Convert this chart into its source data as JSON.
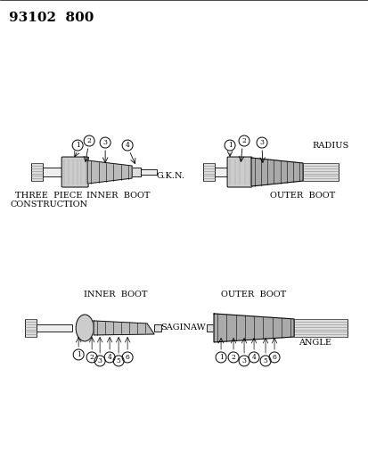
{
  "title_code": "93102  800",
  "background_color": "#ffffff",
  "line_color": "#000000",
  "labels": {
    "three_piece": "THREE  PIECE\nCONSTRUCTION",
    "inner_boot_gkn": "INNER  BOOT",
    "gkn": "G.K.N.",
    "radius": "RADIUS",
    "outer_boot_gkn": "OUTER  BOOT",
    "inner_boot_saginaw": "INNER  BOOT",
    "saginaw": "SAGINAW",
    "outer_boot_angle": "OUTER  BOOT",
    "angle": "ANGLE"
  },
  "font_size_title": 11,
  "font_size_label": 7,
  "font_size_number": 5.5
}
